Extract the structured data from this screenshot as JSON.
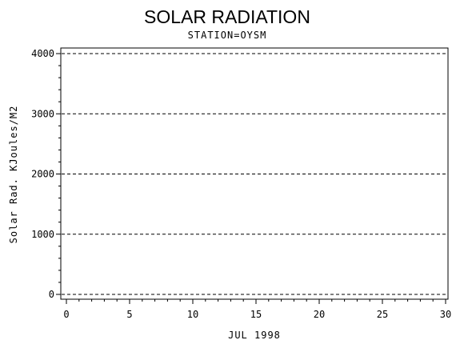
{
  "chart_data": {
    "type": "line",
    "title": "SOLAR RADIATION",
    "subtitle": "STATION=OYSM",
    "xlabel": "JUL 1998",
    "ylabel": "Solar Rad. KJoules/M2",
    "xlim": [
      0,
      30
    ],
    "ylim": [
      0,
      4000
    ],
    "x_ticks": [
      0,
      5,
      10,
      15,
      20,
      25,
      30
    ],
    "x_tick_labels": [
      "0",
      "5",
      "10",
      "15",
      "20",
      "25",
      "30"
    ],
    "y_ticks": [
      0,
      1000,
      2000,
      3000,
      4000
    ],
    "y_tick_labels": [
      "0",
      "1000",
      "2000",
      "3000",
      "4000"
    ],
    "grid": "horizontal dashed",
    "series": []
  }
}
